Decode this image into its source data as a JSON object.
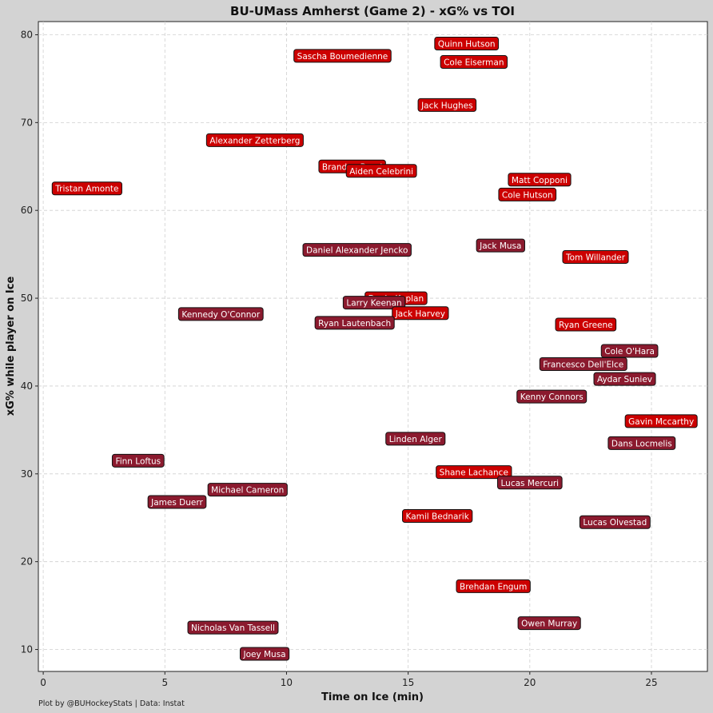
{
  "chart_data": {
    "type": "scatter",
    "title": "BU-UMass Amherst (Game 2) - xG% vs TOI",
    "xlabel": "Time on Ice (min)",
    "ylabel": "xG% while player on Ice",
    "xlim": [
      -0.2,
      27.3
    ],
    "ylim": [
      7.5,
      81.5
    ],
    "xticks": [
      0,
      5,
      10,
      15,
      20,
      25
    ],
    "yticks": [
      10,
      20,
      30,
      40,
      50,
      60,
      70,
      80
    ],
    "grid": true,
    "team_colors": {
      "BU": "#cc0000",
      "UMass Amherst": "#8b1a2e"
    },
    "points": [
      {
        "name": "Quinn Hutson",
        "x": 17.4,
        "y": 79.0,
        "team": "BU"
      },
      {
        "name": "Sascha Boumedienne",
        "x": 12.3,
        "y": 77.6,
        "team": "BU"
      },
      {
        "name": "Cole Eiserman",
        "x": 17.7,
        "y": 76.9,
        "team": "BU"
      },
      {
        "name": "Jack Hughes",
        "x": 16.6,
        "y": 72.0,
        "team": "BU"
      },
      {
        "name": "Alexander Zetterberg",
        "x": 8.7,
        "y": 68.0,
        "team": "BU"
      },
      {
        "name": "Brandon Bussi",
        "x": 12.7,
        "y": 65.0,
        "team": "BU"
      },
      {
        "name": "Aiden Celebrini",
        "x": 13.9,
        "y": 64.5,
        "team": "BU"
      },
      {
        "name": "Matt Copponi",
        "x": 20.4,
        "y": 63.5,
        "team": "BU"
      },
      {
        "name": "Tristan Amonte",
        "x": 1.8,
        "y": 62.5,
        "team": "BU"
      },
      {
        "name": "Cole Hutson",
        "x": 19.9,
        "y": 61.8,
        "team": "BU"
      },
      {
        "name": "Jack Musa",
        "x": 18.8,
        "y": 56.0,
        "team": "UMass Amherst"
      },
      {
        "name": "Daniel Alexander Jencko",
        "x": 12.9,
        "y": 55.5,
        "team": "UMass Amherst"
      },
      {
        "name": "Tom Willander",
        "x": 22.7,
        "y": 54.7,
        "team": "BU"
      },
      {
        "name": "Devin Kaplan",
        "x": 14.5,
        "y": 50.0,
        "team": "BU"
      },
      {
        "name": "Larry Keenan",
        "x": 13.6,
        "y": 49.5,
        "team": "UMass Amherst"
      },
      {
        "name": "Kennedy O'Connor",
        "x": 7.3,
        "y": 48.2,
        "team": "UMass Amherst"
      },
      {
        "name": "Jack Harvey",
        "x": 15.5,
        "y": 48.3,
        "team": "BU"
      },
      {
        "name": "Ryan Lautenbach",
        "x": 12.8,
        "y": 47.2,
        "team": "UMass Amherst"
      },
      {
        "name": "Ryan Greene",
        "x": 22.3,
        "y": 47.0,
        "team": "BU"
      },
      {
        "name": "Cole O'Hara",
        "x": 24.1,
        "y": 44.0,
        "team": "UMass Amherst"
      },
      {
        "name": "Francesco Dell'Elce",
        "x": 22.2,
        "y": 42.5,
        "team": "UMass Amherst"
      },
      {
        "name": "Aydar Suniev",
        "x": 23.9,
        "y": 40.8,
        "team": "UMass Amherst"
      },
      {
        "name": "Kenny Connors",
        "x": 20.9,
        "y": 38.8,
        "team": "UMass Amherst"
      },
      {
        "name": "Gavin Mccarthy",
        "x": 25.4,
        "y": 36.0,
        "team": "BU"
      },
      {
        "name": "Linden Alger",
        "x": 15.3,
        "y": 34.0,
        "team": "UMass Amherst"
      },
      {
        "name": "Dans Locmelis",
        "x": 24.6,
        "y": 33.5,
        "team": "UMass Amherst"
      },
      {
        "name": "Finn Loftus",
        "x": 3.9,
        "y": 31.5,
        "team": "UMass Amherst"
      },
      {
        "name": "Shane Lachance",
        "x": 17.7,
        "y": 30.2,
        "team": "BU"
      },
      {
        "name": "Lucas Mercuri",
        "x": 20.0,
        "y": 29.0,
        "team": "UMass Amherst"
      },
      {
        "name": "Michael Cameron",
        "x": 8.4,
        "y": 28.2,
        "team": "UMass Amherst"
      },
      {
        "name": "James Duerr",
        "x": 5.5,
        "y": 26.8,
        "team": "UMass Amherst"
      },
      {
        "name": "Kamil Bednarik",
        "x": 16.2,
        "y": 25.2,
        "team": "BU"
      },
      {
        "name": "Lucas Olvestad",
        "x": 23.5,
        "y": 24.5,
        "team": "UMass Amherst"
      },
      {
        "name": "Brehdan Engum",
        "x": 18.5,
        "y": 17.2,
        "team": "BU"
      },
      {
        "name": "Owen Murray",
        "x": 20.8,
        "y": 13.0,
        "team": "UMass Amherst"
      },
      {
        "name": "Nicholas Van Tassell",
        "x": 7.8,
        "y": 12.5,
        "team": "UMass Amherst"
      },
      {
        "name": "Joey Musa",
        "x": 9.1,
        "y": 9.5,
        "team": "UMass Amherst"
      }
    ],
    "footer": "Plot by @BUHockeyStats | Data: Instat"
  }
}
